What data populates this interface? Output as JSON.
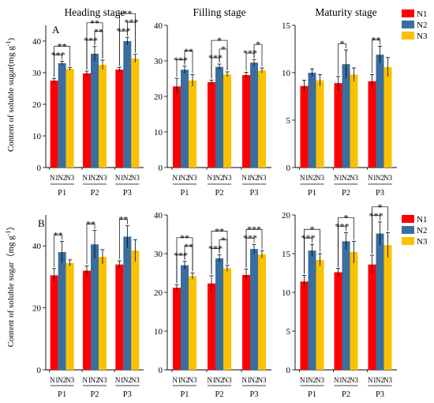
{
  "row_labels": [
    "A",
    "B"
  ],
  "y_label_top": "Content of soluble sugar(mg g",
  "y_label_top_sup": "-1",
  "y_label_top_end": ")",
  "y_label_bottom": "Content of soluble sugar（mg g",
  "y_label_bottom_sup": "-1",
  "y_label_bottom_end": "）",
  "colors": {
    "N1": "#ff0000",
    "N2": "#3a6e9e",
    "N3": "#f9c100"
  },
  "legend": [
    "N1",
    "N2",
    "N3"
  ],
  "chart_data": [
    {
      "type": "bar",
      "row": 0,
      "col": 0,
      "title": "Heading stage",
      "ylim": [
        0,
        45
      ],
      "yticks": [
        0,
        10,
        20,
        30,
        40
      ],
      "groups": [
        "P1",
        "P2",
        "P3"
      ],
      "series_labels": [
        "N1",
        "N2",
        "N3"
      ],
      "values": [
        [
          27.5,
          33.0,
          31.2
        ],
        [
          29.8,
          36.0,
          32.5
        ],
        [
          31.0,
          40.0,
          34.5
        ]
      ],
      "errors": [
        [
          0.7,
          0.6,
          0.5
        ],
        [
          0.7,
          2.3,
          1.5
        ],
        [
          0.7,
          1.2,
          1.3
        ]
      ],
      "brackets": [
        {
          "g": 0,
          "a": 0,
          "b": 1,
          "text": "***"
        },
        {
          "g": 0,
          "a": 0,
          "b": 2,
          "text": "**"
        },
        {
          "g": 1,
          "a": 0,
          "b": 1,
          "text": "***"
        },
        {
          "g": 1,
          "a": 1,
          "b": 2,
          "text": "**"
        },
        {
          "g": 1,
          "a": 0,
          "b": 2,
          "text": "**"
        },
        {
          "g": 2,
          "a": 0,
          "b": 1,
          "text": "***"
        },
        {
          "g": 2,
          "a": 1,
          "b": 2,
          "text": "***"
        },
        {
          "g": 2,
          "a": 0,
          "b": 2,
          "text": "**"
        }
      ]
    },
    {
      "type": "bar",
      "row": 0,
      "col": 1,
      "title": "Filling stage",
      "ylim": [
        0,
        40
      ],
      "yticks": [
        0,
        10,
        20,
        30,
        40
      ],
      "groups": [
        "P1",
        "P2",
        "P3"
      ],
      "series_labels": [
        "N1",
        "N2",
        "N3"
      ],
      "values": [
        [
          22.8,
          27.5,
          24.5
        ],
        [
          24.0,
          28.3,
          26.2
        ],
        [
          26.0,
          29.5,
          27.3
        ]
      ],
      "errors": [
        [
          2.3,
          1.0,
          1.6
        ],
        [
          0.6,
          0.8,
          0.7
        ],
        [
          0.8,
          0.9,
          0.7
        ]
      ],
      "brackets": [
        {
          "g": 0,
          "a": 0,
          "b": 1,
          "text": "***"
        },
        {
          "g": 0,
          "a": 1,
          "b": 2,
          "text": "**"
        },
        {
          "g": 1,
          "a": 0,
          "b": 1,
          "text": "***"
        },
        {
          "g": 1,
          "a": 1,
          "b": 2,
          "text": "*"
        },
        {
          "g": 1,
          "a": 0,
          "b": 2,
          "text": "*"
        },
        {
          "g": 2,
          "a": 0,
          "b": 1,
          "text": "***"
        },
        {
          "g": 2,
          "a": 1,
          "b": 2,
          "text": "*"
        }
      ]
    },
    {
      "type": "bar",
      "row": 0,
      "col": 2,
      "title": "Maturity stage",
      "ylim": [
        0,
        15
      ],
      "yticks": [
        0,
        5,
        10,
        15
      ],
      "groups": [
        "P1",
        "P2",
        "P3"
      ],
      "series_labels": [
        "N1",
        "N2",
        "N3"
      ],
      "values": [
        [
          8.6,
          10.0,
          9.2
        ],
        [
          8.9,
          10.9,
          9.8
        ],
        [
          9.1,
          11.9,
          10.6
        ]
      ],
      "errors": [
        [
          0.6,
          0.4,
          0.6
        ],
        [
          0.7,
          1.5,
          0.7
        ],
        [
          0.7,
          0.9,
          1.0
        ]
      ],
      "brackets": [
        {
          "g": 1,
          "a": 0,
          "b": 1,
          "text": "*"
        },
        {
          "g": 2,
          "a": 0,
          "b": 1,
          "text": "**"
        }
      ]
    },
    {
      "type": "bar",
      "row": 1,
      "col": 0,
      "title": "",
      "ylim": [
        0,
        50
      ],
      "yticks": [
        0,
        20,
        40
      ],
      "groups": [
        "P1",
        "P2",
        "P3"
      ],
      "series_labels": [
        "N1",
        "N2",
        "N3"
      ],
      "values": [
        [
          30.5,
          38.0,
          34.5
        ],
        [
          32.0,
          40.5,
          36.5
        ],
        [
          34.0,
          43.0,
          38.5
        ]
      ],
      "errors": [
        [
          2.2,
          3.5,
          1.0
        ],
        [
          1.5,
          4.5,
          2.3
        ],
        [
          1.2,
          3.5,
          3.5
        ]
      ],
      "brackets": [
        {
          "g": 0,
          "a": 0,
          "b": 1,
          "text": "**"
        },
        {
          "g": 1,
          "a": 0,
          "b": 1,
          "text": "**"
        },
        {
          "g": 2,
          "a": 0,
          "b": 1,
          "text": "**"
        }
      ]
    },
    {
      "type": "bar",
      "row": 1,
      "col": 1,
      "title": "",
      "ylim": [
        0,
        40
      ],
      "yticks": [
        0,
        10,
        20,
        30,
        40
      ],
      "groups": [
        "P1",
        "P2",
        "P3"
      ],
      "series_labels": [
        "N1",
        "N2",
        "N3"
      ],
      "values": [
        [
          21.2,
          27.0,
          24.2
        ],
        [
          22.3,
          28.8,
          26.2
        ],
        [
          24.5,
          31.2,
          29.8
        ]
      ],
      "errors": [
        [
          0.8,
          1.0,
          0.8
        ],
        [
          2.0,
          0.9,
          0.8
        ],
        [
          1.5,
          1.2,
          1.0
        ]
      ],
      "brackets": [
        {
          "g": 0,
          "a": 0,
          "b": 1,
          "text": "***"
        },
        {
          "g": 0,
          "a": 1,
          "b": 2,
          "text": "**"
        },
        {
          "g": 0,
          "a": 0,
          "b": 2,
          "text": "**"
        },
        {
          "g": 1,
          "a": 0,
          "b": 1,
          "text": "***"
        },
        {
          "g": 1,
          "a": 1,
          "b": 2,
          "text": "*"
        },
        {
          "g": 1,
          "a": 0,
          "b": 2,
          "text": "**"
        },
        {
          "g": 2,
          "a": 0,
          "b": 1,
          "text": "***"
        },
        {
          "g": 2,
          "a": 0,
          "b": 2,
          "text": "***"
        }
      ]
    },
    {
      "type": "bar",
      "row": 1,
      "col": 2,
      "title": "",
      "ylim": [
        0,
        20
      ],
      "yticks": [
        0,
        5,
        10,
        15,
        20
      ],
      "groups": [
        "P1",
        "P2",
        "P3"
      ],
      "series_labels": [
        "N1",
        "N2",
        "N3"
      ],
      "values": [
        [
          11.4,
          15.4,
          14.2
        ],
        [
          12.6,
          16.6,
          15.2
        ],
        [
          13.6,
          17.6,
          16.1
        ]
      ],
      "errors": [
        [
          0.8,
          0.8,
          0.8
        ],
        [
          0.5,
          1.1,
          1.4
        ],
        [
          1.2,
          1.5,
          1.6
        ]
      ],
      "brackets": [
        {
          "g": 0,
          "a": 0,
          "b": 1,
          "text": "***"
        },
        {
          "g": 0,
          "a": 0,
          "b": 2,
          "text": "*"
        },
        {
          "g": 1,
          "a": 0,
          "b": 1,
          "text": "***"
        },
        {
          "g": 1,
          "a": 0,
          "b": 2,
          "text": "*"
        },
        {
          "g": 2,
          "a": 0,
          "b": 1,
          "text": "***"
        },
        {
          "g": 2,
          "a": 0,
          "b": 2,
          "text": "*"
        }
      ]
    }
  ]
}
